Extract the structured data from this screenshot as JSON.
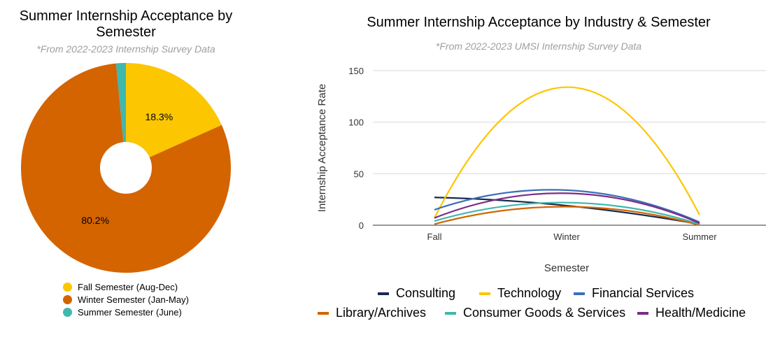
{
  "chart_data": [
    {
      "type": "pie",
      "title": "Summer Internship Acceptance by Semester",
      "subtitle": "*From 2022-2023 Internship Survey Data",
      "donut_hole": true,
      "slices": [
        {
          "name": "Fall Semester (Aug-Dec)",
          "value": 18.3,
          "label": "18.3%",
          "color": "#fcc600"
        },
        {
          "name": "Winter Semester (Jan-May)",
          "value": 80.2,
          "label": "80.2%",
          "color": "#d46400"
        },
        {
          "name": "Summer Semester (June)",
          "value": 1.5,
          "label": "",
          "color": "#3fb8ad"
        }
      ],
      "legend_position": "bottom"
    },
    {
      "type": "line",
      "title": "Summer Internship Acceptance by Industry & Semester",
      "subtitle": "*From 2022-2023 UMSI Internship Survey Data",
      "xlabel": "Semester",
      "ylabel": "Internship Acceptance Rate",
      "categories": [
        "Fall",
        "Winter",
        "Summer"
      ],
      "ylim": [
        0,
        150
      ],
      "yticks": [
        "0",
        "50",
        "100",
        "150"
      ],
      "grid": true,
      "smooth": true,
      "legend_position": "bottom",
      "series": [
        {
          "name": "Consulting",
          "values": [
            27,
            19,
            1
          ],
          "color": "#172b4d"
        },
        {
          "name": "Technology",
          "values": [
            7,
            134,
            10
          ],
          "color": "#fcc600"
        },
        {
          "name": "Financial Services",
          "values": [
            15,
            34,
            3
          ],
          "color": "#3d6fba"
        },
        {
          "name": "Library/Archives",
          "values": [
            1,
            18,
            0
          ],
          "color": "#d46400"
        },
        {
          "name": "Consumer Goods & Services",
          "values": [
            4,
            22,
            1
          ],
          "color": "#3fb8ad"
        },
        {
          "name": "Health/Medicine",
          "values": [
            7,
            31,
            2
          ],
          "color": "#7b2d86"
        }
      ]
    }
  ]
}
